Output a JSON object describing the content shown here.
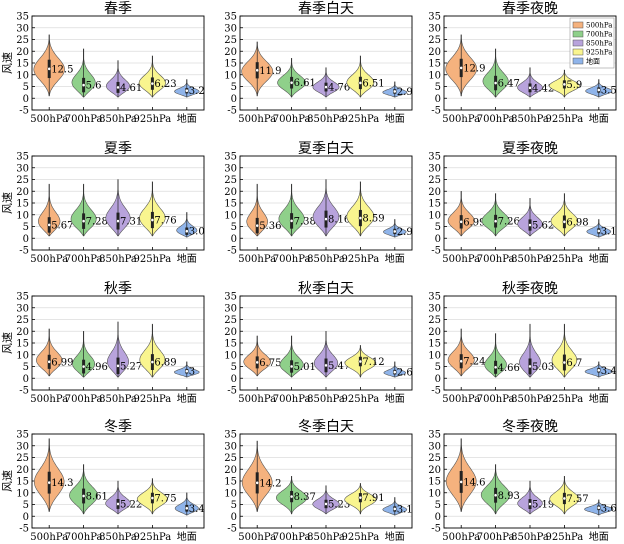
{
  "chart_data": {
    "type": "violin",
    "ylabel": "风速",
    "ylim": [
      -5,
      35
    ],
    "yticks": [
      -5,
      0,
      5,
      10,
      15,
      20,
      25,
      30,
      35
    ],
    "categories": [
      "500hPa",
      "700hPa",
      "850hPa",
      "925hPa",
      "地面"
    ],
    "colors": {
      "500hPa": "#f5b27e",
      "700hPa": "#8fd08a",
      "850hPa": "#b8a3dc",
      "925hPa": "#f9f58f",
      "地面": "#8fb4ea"
    },
    "legend": {
      "position": "top-right",
      "entries": [
        "500hPa",
        "700hPa",
        "850hPa",
        "925hPa",
        "地面"
      ]
    },
    "panels": [
      {
        "title": "春季",
        "medians": [
          "12.5",
          "5.6",
          "4.61",
          "6.23",
          "3.2"
        ],
        "mins": [
          1,
          0.5,
          0.5,
          0.5,
          0.5
        ],
        "maxs": [
          27,
          21,
          16,
          18,
          8
        ]
      },
      {
        "title": "春季白天",
        "medians": [
          "11.9",
          "6.61",
          "4.76",
          "6.51",
          "2.9"
        ],
        "mins": [
          1,
          0.5,
          0.5,
          0.5,
          0.5
        ],
        "maxs": [
          24,
          17,
          13,
          18,
          7
        ]
      },
      {
        "title": "春季夜晚",
        "medians": [
          "12.9",
          "6.47",
          "4.42",
          "5.9",
          "3.5"
        ],
        "mins": [
          1,
          0.5,
          0.5,
          0.5,
          0.5
        ],
        "maxs": [
          27,
          21,
          13,
          12,
          8
        ]
      },
      {
        "title": "夏季",
        "medians": [
          "5.67",
          "7.28",
          "7.31",
          "7.76",
          "3.0"
        ],
        "mins": [
          1,
          1,
          1,
          1,
          0.5
        ],
        "maxs": [
          23,
          23,
          25,
          24,
          11
        ]
      },
      {
        "title": "夏季白天",
        "medians": [
          "5.36",
          "7.38",
          "8.16",
          "8.59",
          "2.9"
        ],
        "mins": [
          1,
          1,
          1,
          1,
          0.5
        ],
        "maxs": [
          23,
          23,
          25,
          24,
          8
        ]
      },
      {
        "title": "夏季夜晚",
        "medians": [
          "6.99",
          "7.26",
          "5.62",
          "6.98",
          "3.1"
        ],
        "mins": [
          1,
          1,
          1,
          1,
          0.5
        ],
        "maxs": [
          20,
          19,
          17,
          19,
          8
        ]
      },
      {
        "title": "秋季",
        "medians": [
          "6.99",
          "4.96",
          "5.27",
          "6.89",
          "3"
        ],
        "mins": [
          1,
          0.5,
          0.5,
          0.5,
          0.5
        ],
        "maxs": [
          21,
          20,
          24,
          23,
          7
        ]
      },
      {
        "title": "秋季白天",
        "medians": [
          "6.75",
          "5.01",
          "5.47",
          "7.12",
          "2.6"
        ],
        "mins": [
          1,
          0.5,
          0.5,
          0.5,
          0.5
        ],
        "maxs": [
          18,
          18,
          20,
          14,
          7
        ]
      },
      {
        "title": "秋季夜晚",
        "medians": [
          "7.24",
          "4.66",
          "5.03",
          "6.7",
          "3.4"
        ],
        "mins": [
          1,
          0.5,
          0.5,
          0.5,
          0.5
        ],
        "maxs": [
          21,
          19,
          23,
          23,
          7
        ]
      },
      {
        "title": "冬季",
        "medians": [
          "14.3",
          "8.61",
          "5.22",
          "7.75",
          "3.4"
        ],
        "mins": [
          2,
          1,
          1,
          1,
          0.5
        ],
        "maxs": [
          33,
          22,
          15,
          16,
          10
        ]
      },
      {
        "title": "冬季白天",
        "medians": [
          "14.2",
          "8.37",
          "5.23",
          "7.91",
          "3.1"
        ],
        "mins": [
          2,
          1,
          1,
          1,
          0.5
        ],
        "maxs": [
          32,
          17,
          13,
          14,
          8
        ]
      },
      {
        "title": "冬季夜晚",
        "medians": [
          "14.6",
          "8.93",
          "5.19",
          "7.57",
          "3.6"
        ],
        "mins": [
          2,
          1,
          1,
          1,
          0.5
        ],
        "maxs": [
          33,
          22,
          15,
          17,
          7
        ]
      }
    ]
  }
}
